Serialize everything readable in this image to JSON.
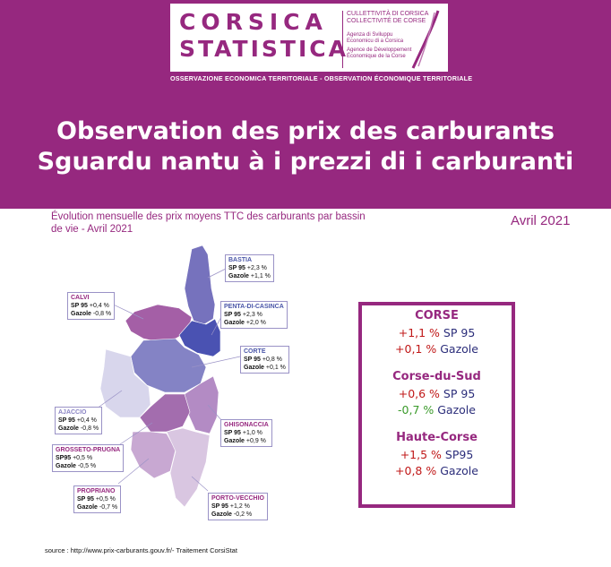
{
  "logo": {
    "line_corsica": "CORSICA",
    "line_statistica": "STATISTICA",
    "coll_1": "CULLETTIVITÀ DI CORSICA",
    "coll_2": "COLLECTIVITÉ DE CORSE",
    "agence_1": "Agenza di Sviluppu Economicu di a Corsica",
    "agence_2": "Agence de Développement Économique de la Corse",
    "band": "OSSERVAZIONE ECONOMICA TERRITORIALE - OBSERVATION ÉCONOMIQUE TERRITORIALE"
  },
  "title": {
    "line1": "Observation des prix des carburants",
    "line2": "Sguardu nantu à i prezzi di i carburanti"
  },
  "subtitle": "Évolution mensuelle des prix moyens TTC des carburants par bassin de vie - Avril 2021",
  "date": "Avril 2021",
  "zones": {
    "bastia": {
      "name": "BASTIA",
      "fuel1": "SP 95",
      "val1": "+2,3 %",
      "fuel2": "Gazole",
      "val2": "+1,1 %"
    },
    "calvi": {
      "name": "CALVI",
      "fuel1": "SP 95",
      "val1": "+0,4 %",
      "fuel2": "Gazole",
      "val2": "-0,8 %"
    },
    "penta": {
      "name": "PENTA-DI-CASINCA",
      "fuel1": "SP 95",
      "val1": "+2,3 %",
      "fuel2": "Gazole",
      "val2": "+2,0 %"
    },
    "corte": {
      "name": "CORTE",
      "fuel1": "SP 95",
      "val1": "+0,8 %",
      "fuel2": "Gazole",
      "val2": "+0,1 %"
    },
    "ajaccio": {
      "name": "AJACCIO",
      "fuel1": "SP 95",
      "val1": "+0,4 %",
      "fuel2": "Gazole",
      "val2": "-0,8 %"
    },
    "ghisonaccia": {
      "name": "GHISONACCIA",
      "fuel1": "SP 95",
      "val1": "+1,0 %",
      "fuel2": "Gazole",
      "val2": "+0,9 %"
    },
    "grosseto": {
      "name": "GROSSETO-PRUGNA",
      "fuel1": "SP95",
      "val1": "+0,5 %",
      "fuel2": "Gazole",
      "val2": "-0,5 %"
    },
    "propriano": {
      "name": "PROPRIANO",
      "fuel1": "SP 95",
      "val1": "+0,5 %",
      "fuel2": "Gazole",
      "val2": "-0,7 %"
    },
    "porto": {
      "name": "PORTO-VECCHIO",
      "fuel1": "SP 95",
      "val1": "+1,2 %",
      "fuel2": "Gazole",
      "val2": "-0,2 %"
    }
  },
  "summary": [
    {
      "name": "CORSE",
      "sp_val": "+1,1 %",
      "sp_label": "SP 95",
      "gz_val": "+0,1 %",
      "gz_label": "Gazole"
    },
    {
      "name": "Corse-du-Sud",
      "sp_val": "+0,6 %",
      "sp_label": "SP 95",
      "gz_val": "-0,7 %",
      "gz_label": "Gazole"
    },
    {
      "name": "Haute-Corse",
      "sp_val": "+1,5 %",
      "sp_label": "SP95",
      "gz_val": "+0,8 %",
      "gz_label": "Gazole"
    }
  ],
  "source": "source : http://www.prix-carburants.gouv.fr/- Traitement CorsiStat",
  "colors": {
    "brand": "#96287f",
    "increase": "#c01818",
    "decrease": "#3a9a2a",
    "text_blue": "#2b2d7a"
  }
}
